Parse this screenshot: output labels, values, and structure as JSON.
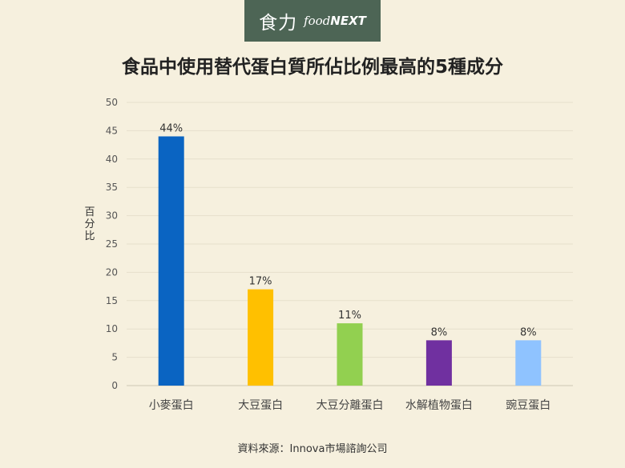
{
  "logo": {
    "chinese": "食力",
    "english_food": "food",
    "english_next": "NEXT"
  },
  "chart_data": {
    "type": "bar",
    "title": "食品中使用替代蛋白質所佔比例最高的5種成分",
    "ylabel": "百分比",
    "xlabel": "",
    "categories": [
      "小麥蛋白",
      "大豆蛋白",
      "大豆分離蛋白",
      "水解植物蛋白",
      "豌豆蛋白"
    ],
    "values": [
      44,
      17,
      11,
      8,
      8
    ],
    "data_labels": [
      "44%",
      "17%",
      "11%",
      "8%",
      "8%"
    ],
    "colors": [
      "#0a64c2",
      "#ffc000",
      "#92d050",
      "#7030a0",
      "#8fc3ff"
    ],
    "ylim": [
      0,
      50
    ],
    "yticks": [
      0,
      5,
      10,
      15,
      20,
      25,
      30,
      35,
      40,
      45,
      50
    ],
    "grid": true,
    "legend": "none"
  },
  "source": "資料來源：Innova市場諮詢公司"
}
